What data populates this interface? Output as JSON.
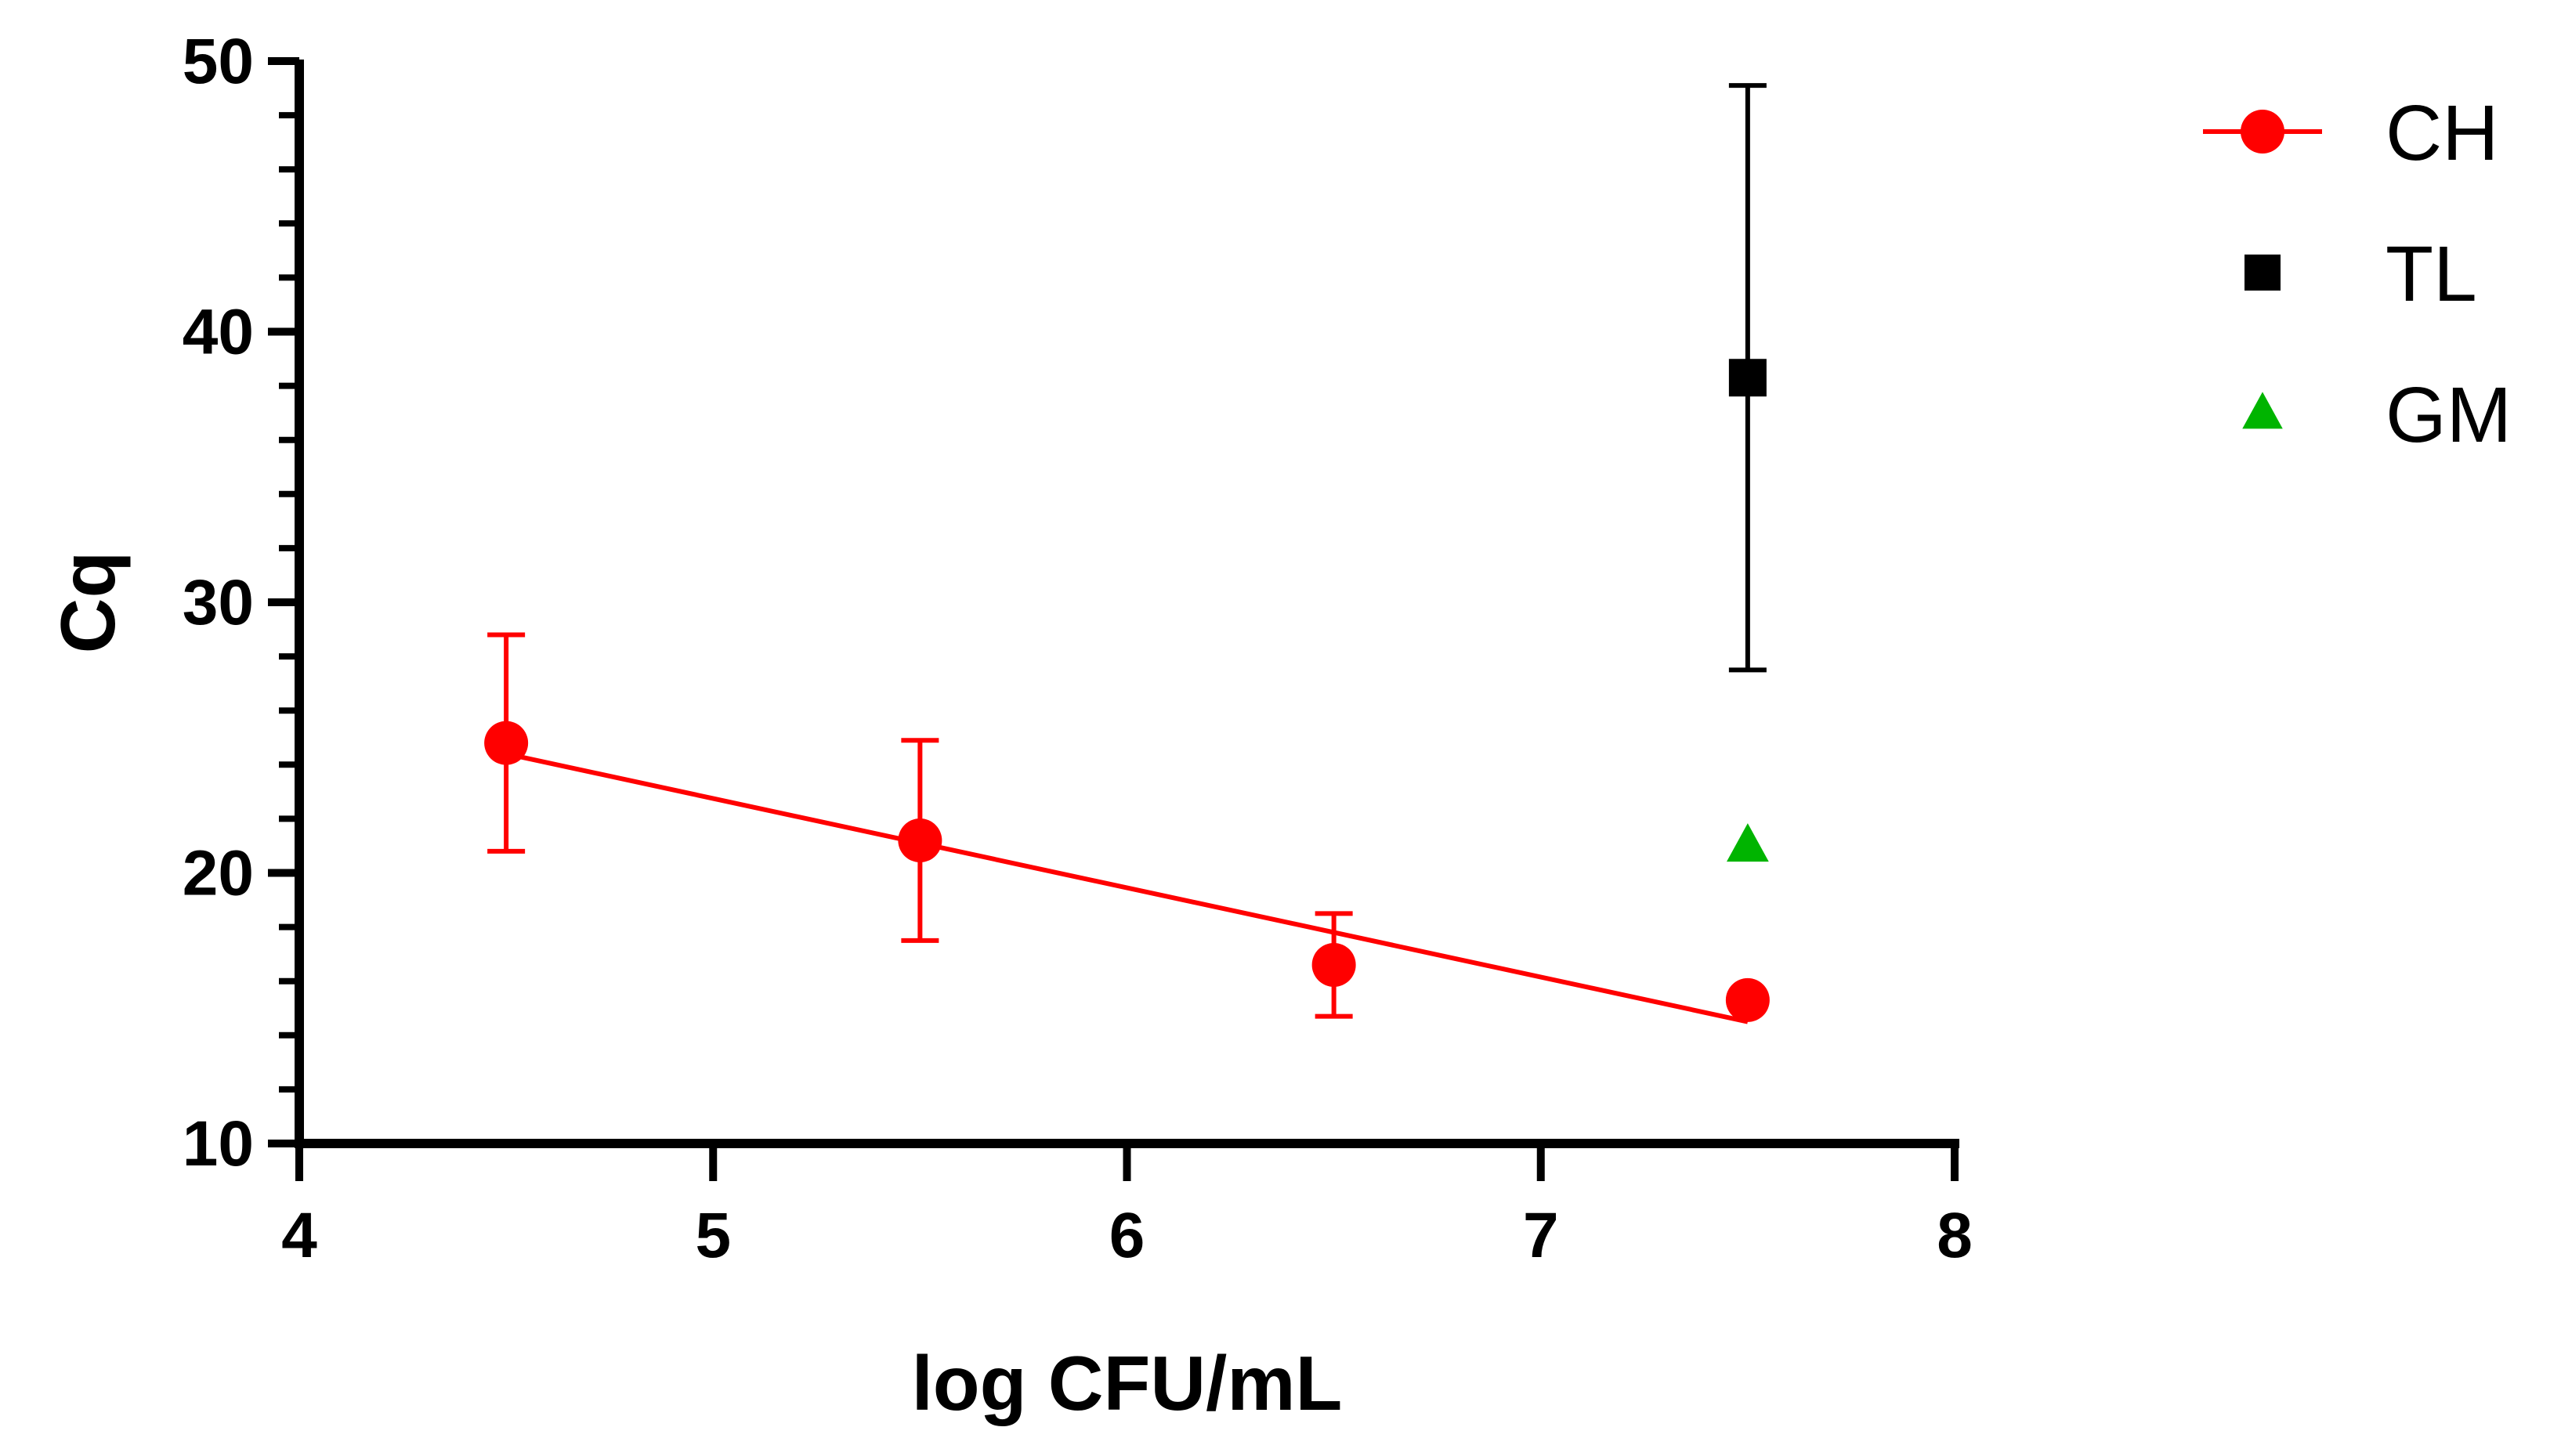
{
  "chart_data": {
    "type": "scatter",
    "title": "",
    "xlabel": "log CFU/mL",
    "ylabel": "Cq",
    "xlim": [
      4,
      8
    ],
    "ylim": [
      10,
      50
    ],
    "x_ticks": [
      "4",
      "5",
      "6",
      "7",
      "8"
    ],
    "y_ticks": [
      "10",
      "20",
      "30",
      "40",
      "50"
    ],
    "y_minor_step": 2,
    "grid": false,
    "legend_position": "top-right outside",
    "series": [
      {
        "name": "CH",
        "color": "#ff0000",
        "marker": "circle",
        "x": [
          4.5,
          5.5,
          6.5,
          7.5
        ],
        "y": [
          24.8,
          21.2,
          16.6,
          15.3
        ],
        "error": [
          4.0,
          3.7,
          1.9,
          null
        ],
        "fit_line": {
          "x": [
            4.5,
            7.5
          ],
          "y": [
            24.4,
            14.5
          ]
        }
      },
      {
        "name": "TL",
        "color": "#000000",
        "marker": "square",
        "x": [
          7.5
        ],
        "y": [
          38.3
        ],
        "error": [
          10.8
        ]
      },
      {
        "name": "GM",
        "color": "#00b400",
        "marker": "triangle",
        "x": [
          7.5
        ],
        "y": [
          21.0
        ],
        "error": [
          null
        ]
      }
    ]
  }
}
